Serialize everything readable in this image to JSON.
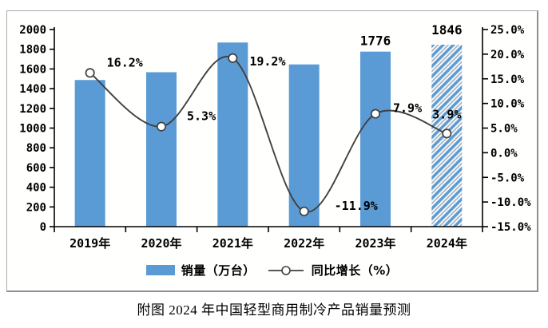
{
  "caption": "附图 2024 年中国轻型商用制冷产品销量预测",
  "chart_data": {
    "type": "bar+line combo, dual y-axis",
    "categories": [
      "2019年",
      "2020年",
      "2021年",
      "2022年",
      "2023年",
      "2024年"
    ],
    "series": [
      {
        "name": "销量（万台）",
        "type": "bar",
        "axis": "left",
        "values": [
          1488,
          1567,
          1868,
          1646,
          1776,
          1846
        ],
        "value_labels": [
          "",
          "",
          "",
          "",
          "1776",
          "1846"
        ],
        "hatched": [
          false,
          false,
          false,
          false,
          false,
          true
        ]
      },
      {
        "name": "同比增长（%）",
        "type": "line",
        "axis": "right",
        "smooth": true,
        "values": [
          16.2,
          5.3,
          19.2,
          -11.9,
          7.9,
          3.9
        ],
        "value_labels": [
          "16.2%",
          "5.3%",
          "19.2%",
          "-11.9%",
          "7.9%",
          "3.9%"
        ]
      }
    ],
    "left_axis": {
      "min": 0,
      "max": 2000,
      "step": 200
    },
    "right_axis": {
      "min": -15,
      "max": 25,
      "step": 5,
      "decimals": 1,
      "suffix": "%"
    },
    "grid": "off",
    "legend": {
      "position": "bottom",
      "items": [
        {
          "label": "销量（万台）",
          "marker": "bar-swatch"
        },
        {
          "label": "同比增长（%）",
          "marker": "line-circle"
        }
      ]
    },
    "colors": {
      "bar": "#5B9BD5",
      "bar_hatch_alt": "#AAB4BE",
      "bar_hatch_bg": "#FEFEFE",
      "bar_value_label": "#41719C",
      "line": "#404040",
      "marker_fill": "#FFFFFF",
      "axis": "#000000"
    }
  }
}
